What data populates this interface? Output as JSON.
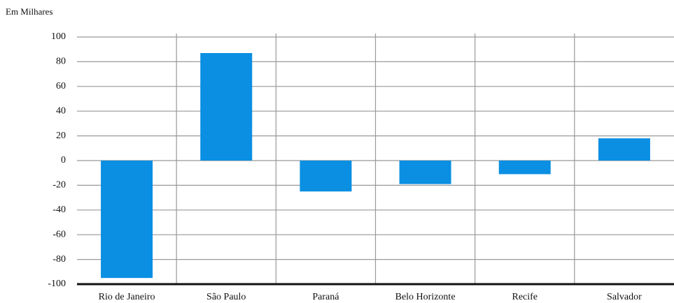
{
  "chart_data": {
    "type": "bar",
    "y_axis_label": "Em Milhares",
    "categories": [
      "Rio de Janeiro",
      "São Paulo",
      "Paraná",
      "Belo Horizonte",
      "Recife",
      "Salvador"
    ],
    "values": [
      -95,
      87,
      -25,
      -19,
      -11,
      18
    ],
    "color": "#0a8fe2",
    "ylim": [
      -100,
      100
    ],
    "yticks": [
      -100,
      -80,
      -60,
      -40,
      -20,
      0,
      20,
      40,
      60,
      80,
      100
    ],
    "grid": true
  }
}
